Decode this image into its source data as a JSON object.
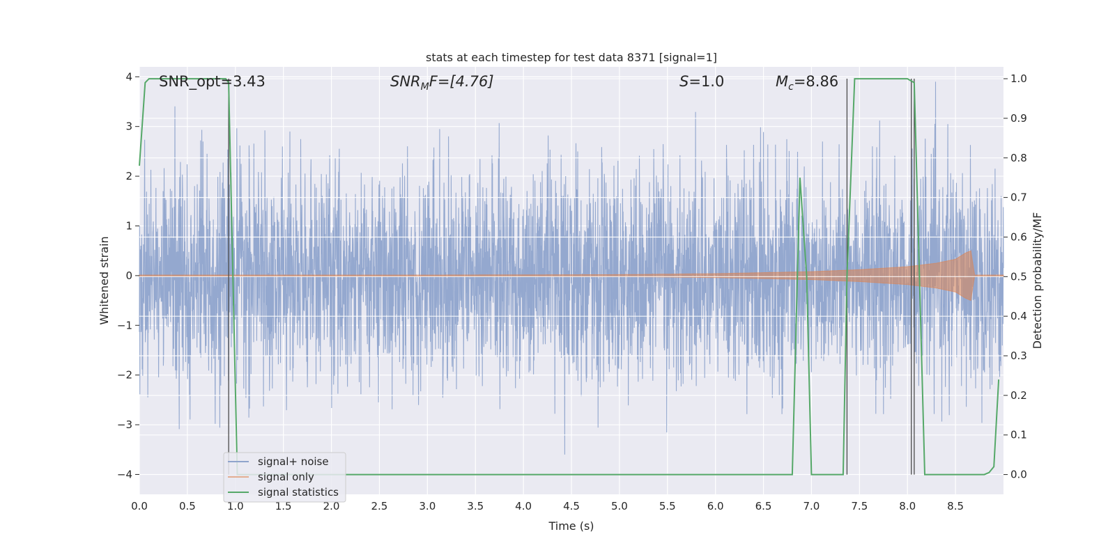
{
  "chart_data": {
    "type": "line",
    "title": "stats at each timestep for test data 8371 [signal=1]",
    "xlabel": "Time (s)",
    "ylabel": "Whitened strain",
    "ylabel_right": "Detection probability/MF",
    "xlim": [
      0.0,
      9.0
    ],
    "ylim": [
      -4.4,
      4.2
    ],
    "ylim_right": [
      -0.05,
      1.03
    ],
    "x_ticks": [
      "0.0",
      "0.5",
      "1.0",
      "1.5",
      "2.0",
      "2.5",
      "3.0",
      "3.5",
      "4.0",
      "4.5",
      "5.0",
      "5.5",
      "6.0",
      "6.5",
      "7.0",
      "7.5",
      "8.0",
      "8.5"
    ],
    "y_ticks": [
      "−4",
      "−3",
      "−2",
      "−1",
      "0",
      "1",
      "2",
      "3",
      "4"
    ],
    "y_ticks_right": [
      "0.0",
      "0.1",
      "0.2",
      "0.3",
      "0.4",
      "0.5",
      "0.6",
      "0.7",
      "0.8",
      "0.9",
      "1.0"
    ],
    "grid": true,
    "legend_position": "lower-left",
    "annotations": {
      "snr_opt": "SNR_opt=3.43",
      "snr_mf_base": "SNR",
      "snr_mf_sub": "M",
      "snr_mf_rest": "F=[4.76]",
      "s_italic": "S",
      "s_rest": "=1.0",
      "mc_base": "M",
      "mc_sub": "c",
      "mc_rest": "=8.86"
    },
    "vertical_lines_x": [
      0.93,
      7.37,
      8.04,
      8.07
    ],
    "series": [
      {
        "name": "signal+ noise",
        "color": "#8fa4cc",
        "description_x_range": [
          0.0,
          9.0
        ],
        "approx_amplitude_range": [
          -3.6,
          3.9
        ]
      },
      {
        "name": "signal only",
        "color": "#dd8452",
        "x": [
          0.0,
          5.0,
          6.0,
          6.5,
          7.0,
          7.5,
          8.0,
          8.3,
          8.5,
          8.6,
          8.66,
          8.7,
          9.0
        ],
        "envelope": [
          0.0,
          0.02,
          0.04,
          0.06,
          0.08,
          0.12,
          0.18,
          0.25,
          0.33,
          0.45,
          0.5,
          0.0,
          0.0
        ]
      },
      {
        "name": "signal statistics",
        "color": "#55a868",
        "x": [
          0.0,
          0.06,
          0.1,
          0.5,
          0.9,
          0.93,
          1.02,
          1.05,
          6.8,
          6.88,
          6.95,
          7.0,
          7.33,
          7.37,
          7.45,
          7.5,
          8.0,
          8.07,
          8.18,
          8.8,
          8.85,
          8.9,
          8.95
        ],
        "y": [
          0.78,
          0.99,
          1.0,
          1.0,
          1.0,
          0.99,
          0.0,
          0.0,
          0.0,
          0.75,
          0.5,
          0.0,
          0.0,
          0.5,
          1.0,
          1.0,
          1.0,
          0.99,
          0.0,
          0.0,
          0.005,
          0.02,
          0.24
        ]
      }
    ]
  }
}
